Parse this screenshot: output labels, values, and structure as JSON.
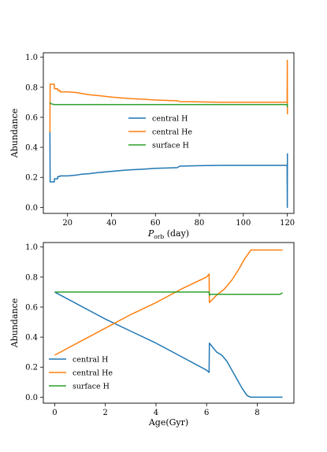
{
  "chart_data": [
    {
      "type": "line",
      "xlabel": "P",
      "xlabel_sub": "orb",
      "xlabel_unit": " (day)",
      "ylabel": "Abundance",
      "xlim": [
        9,
        123
      ],
      "ylim": [
        -0.04,
        1.03
      ],
      "xticks": [
        20,
        40,
        60,
        80,
        100,
        120
      ],
      "yticks": [
        0.0,
        0.2,
        0.4,
        0.6,
        0.8,
        1.0
      ],
      "legend_position": "center",
      "series": [
        {
          "name": "central H",
          "color": "#1f77b4",
          "x": [
            12,
            12.05,
            12.1,
            14,
            14.05,
            15.5,
            15.55,
            16.5,
            16.55,
            20,
            24,
            26,
            30,
            34,
            40,
            44,
            48,
            55,
            60,
            65,
            70,
            71,
            80,
            90,
            100,
            110,
            119.9,
            120,
            120.05
          ],
          "y": [
            0.5,
            0.3,
            0.17,
            0.17,
            0.19,
            0.19,
            0.205,
            0.205,
            0.21,
            0.21,
            0.215,
            0.22,
            0.225,
            0.232,
            0.24,
            0.245,
            0.25,
            0.255,
            0.26,
            0.262,
            0.265,
            0.275,
            0.278,
            0.28,
            0.28,
            0.28,
            0.28,
            0.0,
            0.36
          ]
        },
        {
          "name": "central He",
          "color": "#ff7f0e",
          "x": [
            12,
            12.05,
            12.1,
            14,
            14.05,
            15.5,
            15.55,
            16.5,
            16.55,
            20,
            24,
            26,
            30,
            34,
            40,
            44,
            48,
            55,
            60,
            65,
            70,
            71,
            80,
            90,
            100,
            110,
            119.9,
            120,
            120.05
          ],
          "y": [
            0.5,
            0.68,
            0.82,
            0.82,
            0.79,
            0.79,
            0.78,
            0.78,
            0.77,
            0.77,
            0.765,
            0.76,
            0.75,
            0.745,
            0.735,
            0.73,
            0.725,
            0.72,
            0.715,
            0.713,
            0.71,
            0.705,
            0.703,
            0.7,
            0.7,
            0.7,
            0.7,
            0.98,
            0.62
          ]
        },
        {
          "name": "surface H",
          "color": "#2ca02c",
          "x": [
            12,
            12.5,
            14,
            20,
            40,
            60,
            80,
            100,
            119.9,
            120,
            120.05
          ],
          "y": [
            0.7,
            0.69,
            0.685,
            0.685,
            0.685,
            0.685,
            0.685,
            0.685,
            0.685,
            0.67,
            0.69
          ]
        }
      ]
    },
    {
      "type": "line",
      "xlabel": "Age(Gyr)",
      "ylabel": "Abundance",
      "xlim": [
        -0.45,
        9.45
      ],
      "ylim": [
        -0.04,
        1.03
      ],
      "xticks": [
        0,
        2,
        4,
        6,
        8
      ],
      "yticks": [
        0.0,
        0.2,
        0.4,
        0.6,
        0.8,
        1.0
      ],
      "legend_position": "lower left",
      "series": [
        {
          "name": "central H",
          "color": "#1f77b4",
          "x": [
            0,
            1,
            2,
            3,
            4,
            5,
            6,
            6.1,
            6.11,
            6.4,
            6.6,
            6.8,
            7.0,
            7.2,
            7.4,
            7.6,
            7.75,
            8.0,
            8.5,
            9.0
          ],
          "y": [
            0.7,
            0.61,
            0.52,
            0.44,
            0.36,
            0.27,
            0.18,
            0.165,
            0.36,
            0.3,
            0.28,
            0.24,
            0.18,
            0.12,
            0.06,
            0.01,
            0.0,
            0.0,
            0.0,
            0.0
          ]
        },
        {
          "name": "central He",
          "color": "#ff7f0e",
          "x": [
            0,
            1,
            2,
            3,
            4,
            5,
            6,
            6.1,
            6.11,
            6.4,
            6.7,
            7.0,
            7.3,
            7.5,
            7.75,
            8.0,
            8.5,
            9.0
          ],
          "y": [
            0.28,
            0.37,
            0.46,
            0.55,
            0.63,
            0.72,
            0.8,
            0.82,
            0.63,
            0.68,
            0.72,
            0.78,
            0.86,
            0.92,
            0.98,
            0.98,
            0.98,
            0.98
          ]
        },
        {
          "name": "surface H",
          "color": "#2ca02c",
          "x": [
            0,
            1,
            2,
            3,
            4,
            5,
            6,
            6.1,
            6.11,
            6.15,
            7,
            8,
            8.9,
            9.0
          ],
          "y": [
            0.7,
            0.7,
            0.7,
            0.7,
            0.7,
            0.7,
            0.7,
            0.7,
            0.68,
            0.685,
            0.685,
            0.685,
            0.685,
            0.695
          ]
        }
      ]
    }
  ]
}
